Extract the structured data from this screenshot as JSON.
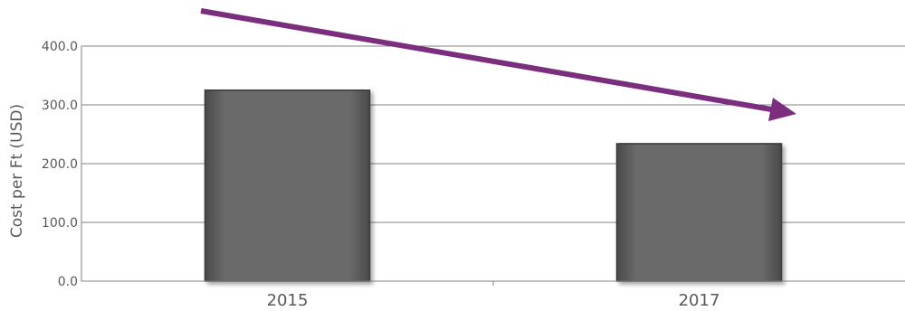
{
  "chart_data": {
    "type": "bar",
    "categories": [
      "2015",
      "2017"
    ],
    "values": [
      325,
      234
    ],
    "title": "",
    "xlabel": "",
    "ylabel": "Cost per Ft (USD)",
    "ylim": [
      0,
      400
    ],
    "yticks": [
      "0.0",
      "100.0",
      "200.0",
      "300.0",
      "400.0"
    ],
    "grid": true,
    "legend": "none",
    "annotations": [
      {
        "kind": "trend-arrow",
        "direction": "downward"
      }
    ],
    "colors": {
      "bar": "#666666",
      "bar_edge": "#3a3a3a",
      "grid": "#808080",
      "text": "#595959",
      "arrow": "#7b2d7e"
    }
  }
}
